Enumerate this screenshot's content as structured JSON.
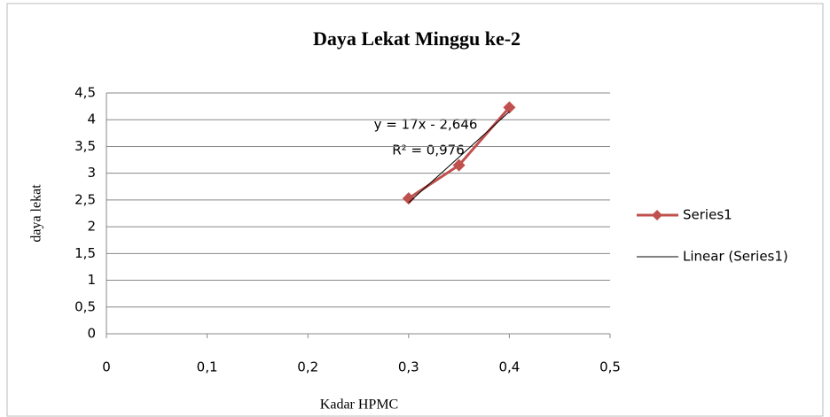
{
  "chart_data": {
    "type": "line",
    "title": "Daya Lekat Minggu ke-2",
    "x_label": "Kadar HPMC",
    "y_label": "daya lekat",
    "x": [
      0.3,
      0.35,
      0.4
    ],
    "series": [
      {
        "name": "Series1",
        "color": "#c0504d",
        "values": [
          2.53,
          3.15,
          4.23
        ],
        "marker": "diamond",
        "line_width": 3
      },
      {
        "name": "Linear (Series1)",
        "color": "#000000",
        "values": [
          2.45,
          3.3,
          4.15
        ],
        "line_width": 1
      }
    ],
    "annotations": [
      "y = 17x - 2,646",
      "R² = 0,976"
    ],
    "xlim": [
      0,
      0.5
    ],
    "xticks": [
      0,
      {
        "value": 0.1,
        "label": "0,1"
      },
      {
        "value": 0.2,
        "label": "0,2"
      },
      {
        "value": 0.3,
        "label": "0,3"
      },
      {
        "value": 0.4,
        "label": "0,4"
      },
      {
        "value": 0.5,
        "label": "0,5"
      }
    ],
    "ylim": [
      0,
      4.5
    ],
    "yticks": [
      0,
      {
        "value": 0.5,
        "label": "0,5"
      },
      1,
      {
        "value": 1.5,
        "label": "1,5"
      },
      2,
      {
        "value": 2.5,
        "label": "2,5"
      },
      3,
      {
        "value": 3.5,
        "label": "3,5"
      },
      4,
      {
        "value": 4.5,
        "label": "4,5"
      }
    ],
    "grid": true,
    "legend": "right"
  }
}
